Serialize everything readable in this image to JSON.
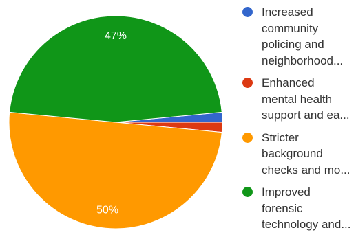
{
  "chart_data": {
    "type": "pie",
    "labels": [
      "Increased community policing and neighborhood...",
      "Enhanced mental health support and ea...",
      "Stricter background checks and mo...",
      "Improved forensic technology and..."
    ],
    "values": [
      1.5,
      1.5,
      50,
      47
    ],
    "colors": [
      "#3366cc",
      "#dc3912",
      "#ff9900",
      "#109618"
    ],
    "data_labels": [
      "",
      "",
      "50%",
      "47%"
    ],
    "legend_position": "right"
  },
  "legend": {
    "items": [
      {
        "lines": [
          "Increased",
          "community",
          "policing and",
          "neighborhood..."
        ],
        "color": "#3366cc"
      },
      {
        "lines": [
          "Enhanced",
          "mental health",
          "support and ea..."
        ],
        "color": "#dc3912"
      },
      {
        "lines": [
          "Stricter",
          "background",
          "checks and mo..."
        ],
        "color": "#ff9900"
      },
      {
        "lines": [
          "Improved",
          "forensic",
          "technology and..."
        ],
        "color": "#109618"
      }
    ]
  }
}
